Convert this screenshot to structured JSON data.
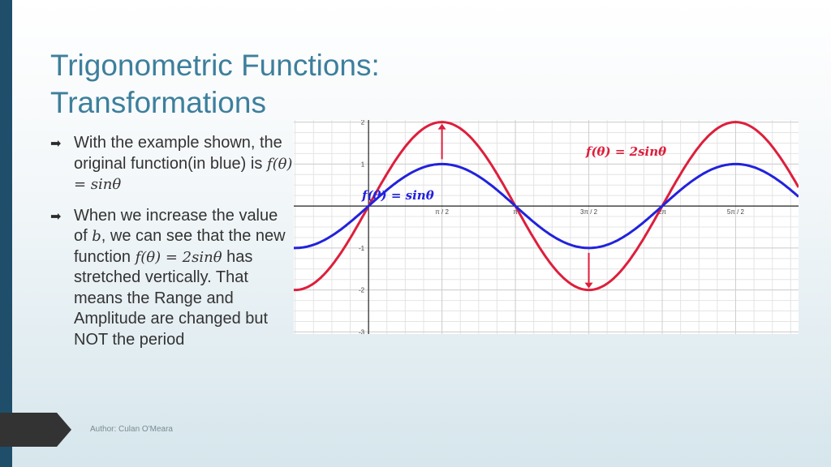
{
  "slide": {
    "title_line1": "Trigonometric Functions:",
    "title_line2": "Transformations",
    "author": "Author: Culan O'Meara"
  },
  "bullets": [
    {
      "icon": "arrow-right-icon",
      "text_a": "With the example shown, the original function(in blue) is ",
      "math": "f(θ) = sinθ"
    },
    {
      "icon": "arrow-right-icon",
      "text_a": "When we increase the value of ",
      "math_b": "b",
      "text_b": ", we can see that the new function ",
      "math": "f(θ) = 2sinθ",
      "text_c": " has stretched vertically. That means the Range and Amplitude are changed but NOT the period"
    }
  ],
  "chart_data": {
    "type": "line",
    "x_ticks": [
      {
        "value": 1.5708,
        "label": "π / 2"
      },
      {
        "value": 3.1416,
        "label": "π"
      },
      {
        "value": 4.7124,
        "label": "3π / 2"
      },
      {
        "value": 6.2832,
        "label": "2π"
      },
      {
        "value": 7.854,
        "label": "5π / 2"
      }
    ],
    "y_ticks": [
      {
        "value": 2,
        "label": "2"
      },
      {
        "value": 1,
        "label": "1"
      },
      {
        "value": -1,
        "label": "-1"
      },
      {
        "value": -2,
        "label": "-2"
      },
      {
        "value": -3,
        "label": "-3"
      }
    ],
    "xlim": [
      -1.6,
      9.2
    ],
    "ylim": [
      -3.05,
      2.05
    ],
    "grid": true,
    "series": [
      {
        "name": "f(θ) = sinθ",
        "amplitude": 1,
        "color": "#2222dd"
      },
      {
        "name": "f(θ) = 2sinθ",
        "amplitude": 2,
        "color": "#dd1f3c"
      }
    ],
    "annotations": [
      {
        "type": "arrow",
        "x": 1.5708,
        "from": 1,
        "to": 2,
        "color": "#dd1f3c"
      },
      {
        "type": "arrow",
        "x": 4.7124,
        "from": -1,
        "to": -2,
        "color": "#dd1f3c"
      }
    ],
    "labels": {
      "red_eq": "f(θ) = 2sinθ",
      "blue_eq": "f(θ) = sinθ"
    }
  }
}
